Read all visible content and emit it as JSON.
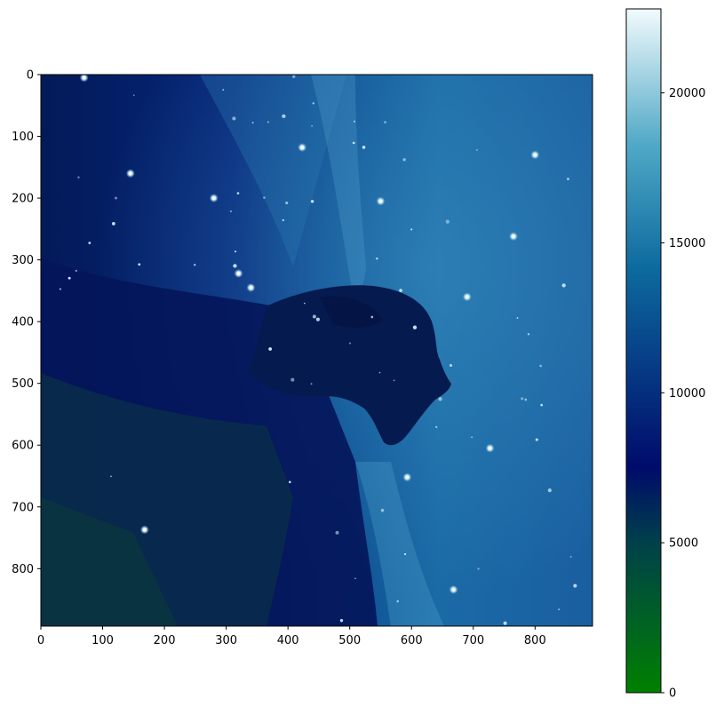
{
  "chart_data": {
    "type": "heatmap",
    "title": "",
    "xlabel": "",
    "ylabel": "",
    "image_extent": {
      "x": [
        0,
        893
      ],
      "y": [
        0,
        893
      ]
    },
    "x_ticks": [
      0,
      100,
      200,
      300,
      400,
      500,
      600,
      700,
      800
    ],
    "y_ticks": [
      0,
      100,
      200,
      300,
      400,
      500,
      600,
      700,
      800
    ],
    "y_axis_inverted": true,
    "colorbar": {
      "range": [
        0,
        22800
      ],
      "ticks": [
        0,
        5000,
        10000,
        15000,
        20000
      ],
      "colormap": [
        "#008000",
        "#00404a",
        "#000b6b",
        "#0d6a9e",
        "#4fa8c6",
        "#f2fbfd"
      ],
      "colormap_stops": [
        0,
        0.22,
        0.33,
        0.62,
        0.8,
        1
      ]
    },
    "description_values": {
      "nebula_background_level": 15500,
      "dark_cloud_level": 7500,
      "star_peak_level": 22800
    }
  },
  "colors": {
    "axis": "#000000",
    "background": "#ffffff"
  }
}
